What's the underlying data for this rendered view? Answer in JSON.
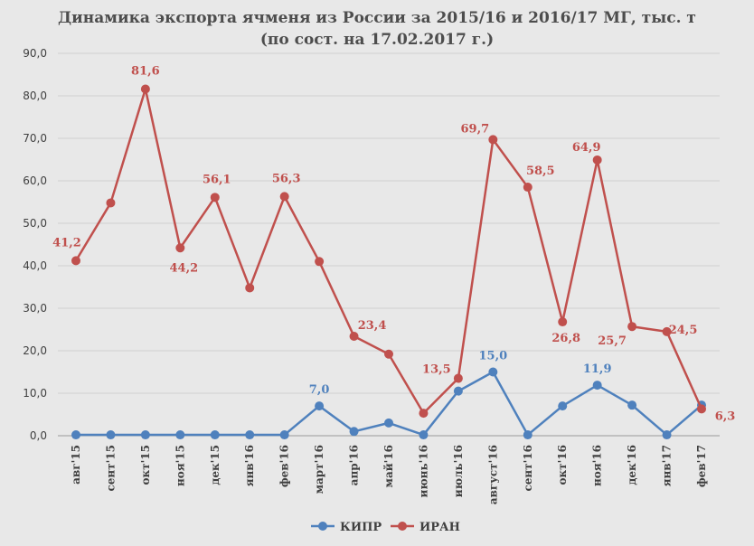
{
  "chart_data": {
    "type": "line",
    "title": "Динамика экспорта ячменя из России за  2015/16 и 2016/17 МГ, тыс. т",
    "subtitle": "(по сост. на 17.02.2017 г.)",
    "categories": [
      "авг'15",
      "сент'15",
      "окт'15",
      "ноя'15",
      "дек'15",
      "янв'16",
      "фев'16",
      "март'16",
      "апр'16",
      "май'16",
      "июнь'16",
      "июль'16",
      "август'16",
      "сент'16",
      "окт'16",
      "ноя'16",
      "дек'16",
      "янв'17",
      "фев'17"
    ],
    "ylim": [
      0,
      90
    ],
    "yticks": [
      "0,0",
      "10,0",
      "20,0",
      "30,0",
      "40,0",
      "50,0",
      "60,0",
      "70,0",
      "80,0",
      "90,0"
    ],
    "grid": true,
    "legend_position": "bottom",
    "series": [
      {
        "name": "КИПР",
        "color": "#4f81bd",
        "values": [
          0.2,
          0.2,
          0.2,
          0.2,
          0.2,
          0.2,
          0.2,
          7.0,
          1.0,
          3.0,
          0.2,
          10.5,
          15.0,
          0.2,
          7.0,
          11.9,
          7.2,
          0.2,
          7.2
        ],
        "labels": [
          null,
          null,
          null,
          null,
          null,
          null,
          null,
          "7,0",
          null,
          null,
          null,
          null,
          "15,0",
          null,
          null,
          "11,9",
          null,
          null,
          null
        ]
      },
      {
        "name": "ИРАН",
        "color": "#c0504d",
        "values": [
          41.2,
          54.8,
          81.6,
          44.2,
          56.1,
          34.8,
          56.3,
          41.0,
          23.4,
          19.2,
          5.3,
          13.5,
          69.7,
          58.5,
          26.8,
          64.9,
          25.7,
          24.5,
          6.3
        ],
        "labels": [
          "41,2",
          null,
          "81,6",
          "44,2",
          "56,1",
          null,
          "56,3",
          null,
          "23,4",
          null,
          null,
          "13,5",
          "69,7",
          "58,5",
          "26,8",
          "64,9",
          "25,7",
          "24,5",
          "6,3"
        ]
      }
    ]
  }
}
